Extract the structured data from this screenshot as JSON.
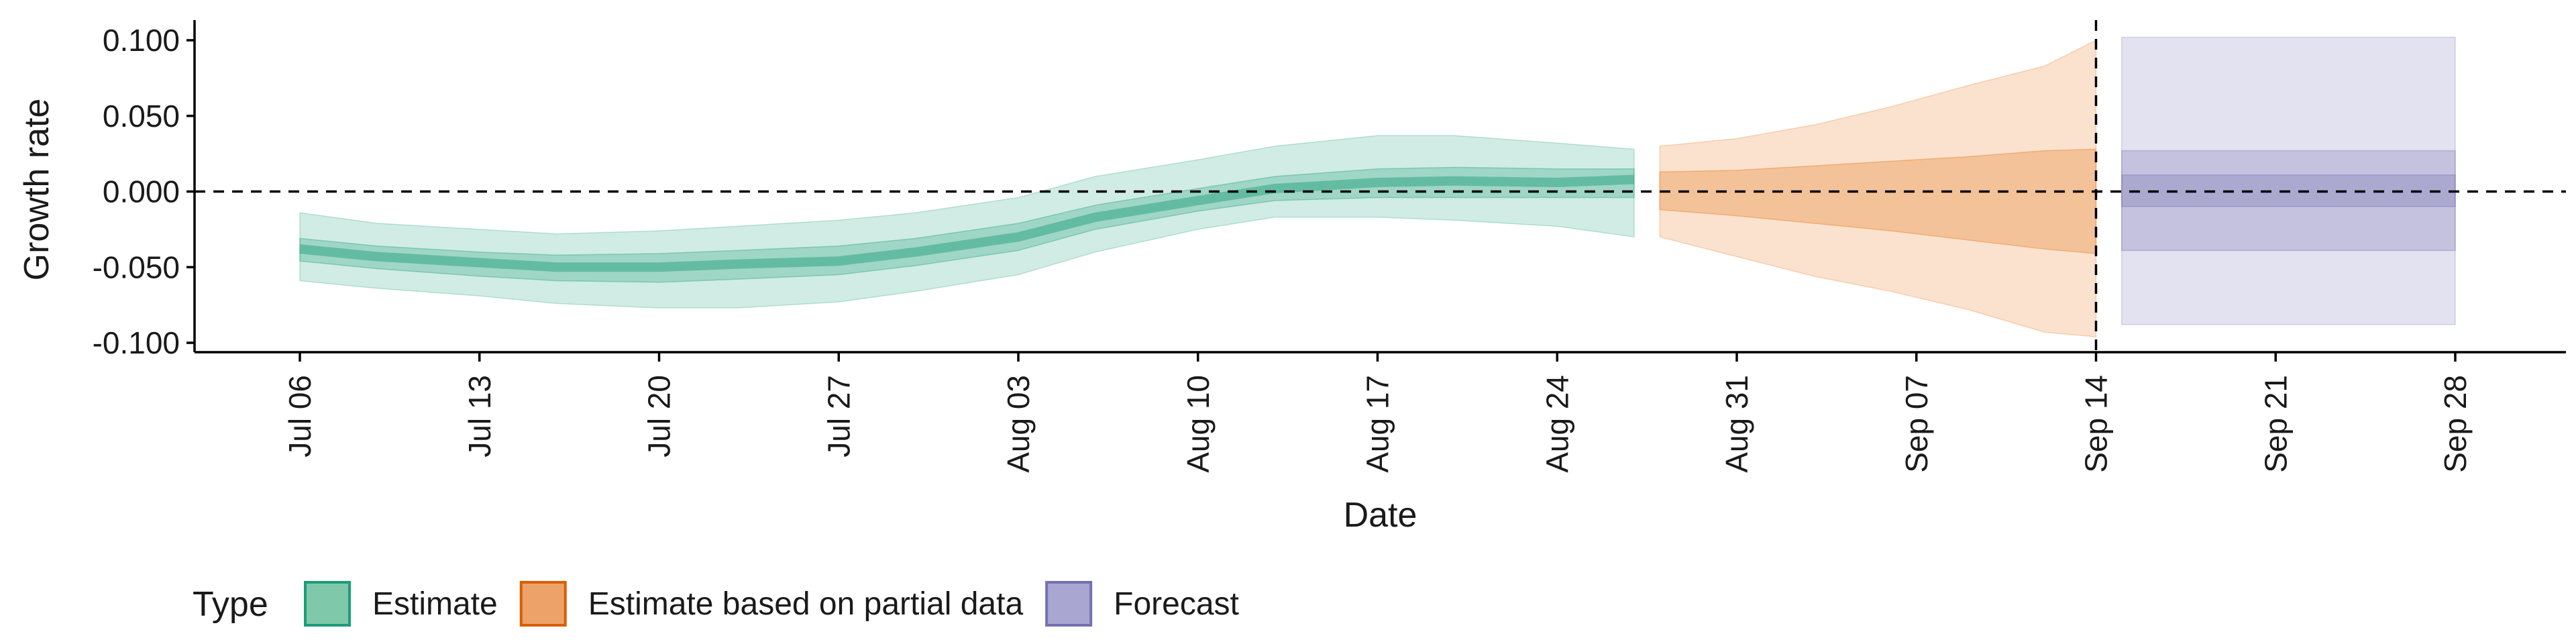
{
  "chart_data": {
    "type": "area",
    "xlabel": "Date",
    "ylabel": "Growth rate",
    "x_axis": {
      "type": "date",
      "start": "2020-07-06",
      "end": "2020-09-28",
      "ticks": [
        "2020-07-06",
        "2020-07-13",
        "2020-07-20",
        "2020-07-27",
        "2020-08-03",
        "2020-08-10",
        "2020-08-17",
        "2020-08-24",
        "2020-08-31",
        "2020-09-07",
        "2020-09-14",
        "2020-09-21",
        "2020-09-28"
      ],
      "tick_labels": [
        "Jul 06",
        "Jul 13",
        "Jul 20",
        "Jul 27",
        "Aug 03",
        "Aug 10",
        "Aug 17",
        "Aug 24",
        "Aug 31",
        "Sep 07",
        "Sep 14",
        "Sep 21",
        "Sep 28"
      ]
    },
    "y_axis": {
      "ylim": [
        -0.1,
        0.1
      ],
      "ticks": [
        0.1,
        0.05,
        0.0,
        -0.05,
        -0.1
      ],
      "tick_labels": [
        "0.100",
        "0.050",
        "0.000",
        "-0.050",
        "-0.100"
      ]
    },
    "reference_lines": {
      "horizontal_y": 0,
      "vertical_x": "2020-09-14",
      "style": "dashed"
    },
    "legend": {
      "title": "Type",
      "position": "bottom-left",
      "items": [
        {
          "label": "Estimate",
          "fill": "#7fc8aa",
          "border": "#1b9e77"
        },
        {
          "label": "Estimate based on partial data",
          "fill": "#eda26a",
          "border": "#d95f02"
        },
        {
          "label": "Forecast",
          "fill": "#a9a6d2",
          "border": "#7570b3"
        }
      ]
    },
    "colors": {
      "estimate": "#1b9e77",
      "partial": "#e6700f",
      "forecast": "#7570b3"
    },
    "series": [
      {
        "name": "Estimate",
        "x": [
          "2020-07-06",
          "2020-07-09",
          "2020-07-13",
          "2020-07-16",
          "2020-07-20",
          "2020-07-23",
          "2020-07-27",
          "2020-07-30",
          "2020-08-03",
          "2020-08-06",
          "2020-08-10",
          "2020-08-13",
          "2020-08-17",
          "2020-08-20",
          "2020-08-24",
          "2020-08-27"
        ],
        "median": [
          -0.038,
          -0.043,
          -0.047,
          -0.05,
          -0.05,
          -0.048,
          -0.046,
          -0.04,
          -0.03,
          -0.017,
          -0.006,
          0.002,
          0.006,
          0.007,
          0.006,
          0.008
        ],
        "lower_90": [
          -0.059,
          -0.064,
          -0.069,
          -0.074,
          -0.077,
          -0.077,
          -0.073,
          -0.066,
          -0.055,
          -0.04,
          -0.025,
          -0.017,
          -0.017,
          -0.019,
          -0.023,
          -0.03
        ],
        "upper_90": [
          -0.014,
          -0.021,
          -0.025,
          -0.028,
          -0.026,
          -0.023,
          -0.019,
          -0.014,
          -0.004,
          0.01,
          0.021,
          0.03,
          0.037,
          0.037,
          0.032,
          0.028
        ],
        "lower_50": [
          -0.046,
          -0.051,
          -0.056,
          -0.059,
          -0.06,
          -0.058,
          -0.055,
          -0.049,
          -0.039,
          -0.025,
          -0.013,
          -0.006,
          -0.004,
          -0.004,
          -0.004,
          -0.004
        ],
        "upper_50": [
          -0.031,
          -0.036,
          -0.04,
          -0.042,
          -0.041,
          -0.039,
          -0.036,
          -0.031,
          -0.021,
          -0.009,
          0.002,
          0.01,
          0.015,
          0.016,
          0.015,
          0.015
        ]
      },
      {
        "name": "Estimate based on partial data",
        "x": [
          "2020-08-28",
          "2020-08-31",
          "2020-09-03",
          "2020-09-06",
          "2020-09-09",
          "2020-09-12",
          "2020-09-14"
        ],
        "median": [
          0.002,
          0.0,
          -0.002,
          -0.002,
          -0.004,
          0.001,
          0.002
        ],
        "lower_90": [
          -0.03,
          -0.043,
          -0.056,
          -0.066,
          -0.078,
          -0.093,
          -0.096
        ],
        "upper_90": [
          0.03,
          0.035,
          0.044,
          0.056,
          0.07,
          0.083,
          0.1
        ],
        "lower_50": [
          -0.012,
          -0.016,
          -0.021,
          -0.026,
          -0.032,
          -0.038,
          -0.041
        ],
        "upper_50": [
          0.013,
          0.014,
          0.017,
          0.02,
          0.023,
          0.027,
          0.028
        ]
      },
      {
        "name": "Forecast",
        "x": [
          "2020-09-15",
          "2020-09-28"
        ],
        "median": [
          0.0,
          0.0
        ],
        "lower_90": [
          -0.088,
          -0.088
        ],
        "upper_90": [
          0.102,
          0.102
        ],
        "lower_50": [
          -0.039,
          -0.039
        ],
        "upper_50": [
          0.027,
          0.027
        ],
        "lower_20": [
          -0.01,
          -0.01
        ],
        "upper_20": [
          0.011,
          0.011
        ]
      }
    ]
  }
}
